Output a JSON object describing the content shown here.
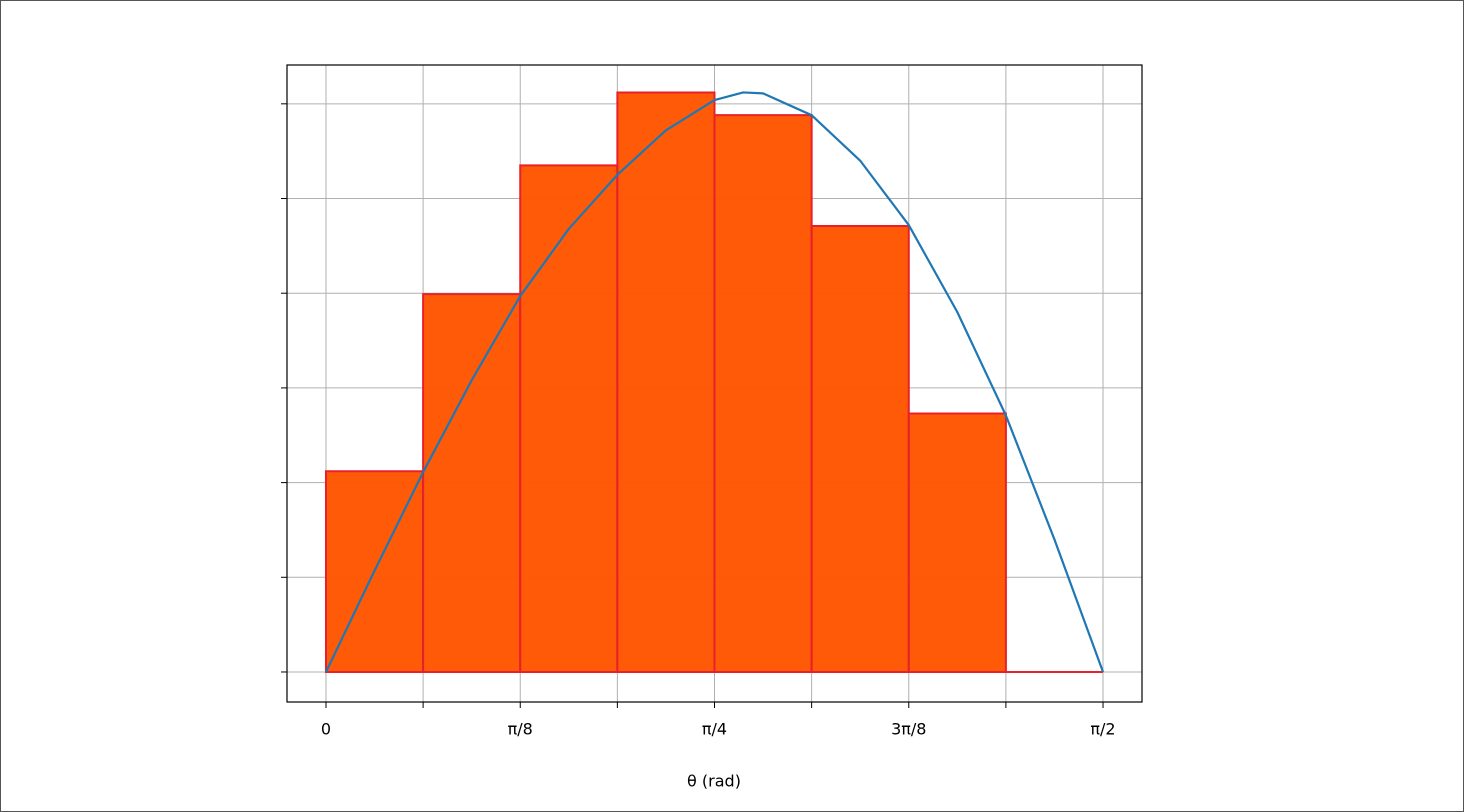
{
  "chart_data": {
    "type": "histogram",
    "xlabel": "θ (rad)",
    "bins": [
      0,
      0.19635,
      0.3927,
      0.58905,
      0.7854,
      0.98175,
      1.1781,
      1.37445,
      1.5708
    ],
    "values": [
      2.12,
      3.99,
      5.35,
      6.12,
      5.88,
      4.71,
      2.73,
      0
    ],
    "color": "#ff5500",
    "edgecolor": "#e8202a",
    "curve": {
      "type": "line",
      "color": "#1f77b4",
      "x": [
        0,
        0.0982,
        0.1963,
        0.2945,
        0.3927,
        0.4909,
        0.589,
        0.6872,
        0.7854,
        0.8434,
        0.8836,
        0.9817,
        1.0799,
        1.1781,
        1.2763,
        1.3744,
        1.4726,
        1.5708
      ],
      "values": [
        0,
        1.07,
        2.11,
        3.08,
        3.97,
        4.68,
        5.25,
        5.72,
        6.04,
        6.12,
        6.11,
        5.88,
        5.4,
        4.72,
        3.8,
        2.71,
        1.4,
        0
      ]
    },
    "xlim": [
      -0.0788,
      1.6496
    ],
    "ylim": [
      -0.317,
      6.41
    ],
    "xticks": [
      {
        "value": 0,
        "label": "0"
      },
      {
        "value": 0.19635,
        "label": null
      },
      {
        "value": 0.3927,
        "label": "π/8"
      },
      {
        "value": 0.58905,
        "label": null
      },
      {
        "value": 0.7854,
        "label": "π/4"
      },
      {
        "value": 0.98175,
        "label": null
      },
      {
        "value": 1.1781,
        "label": "3π/8"
      },
      {
        "value": 1.37445,
        "label": null
      },
      {
        "value": 1.5708,
        "label": "π/2"
      }
    ],
    "yticks": [
      0,
      1,
      2,
      3,
      4,
      5,
      6
    ],
    "grid": true
  }
}
